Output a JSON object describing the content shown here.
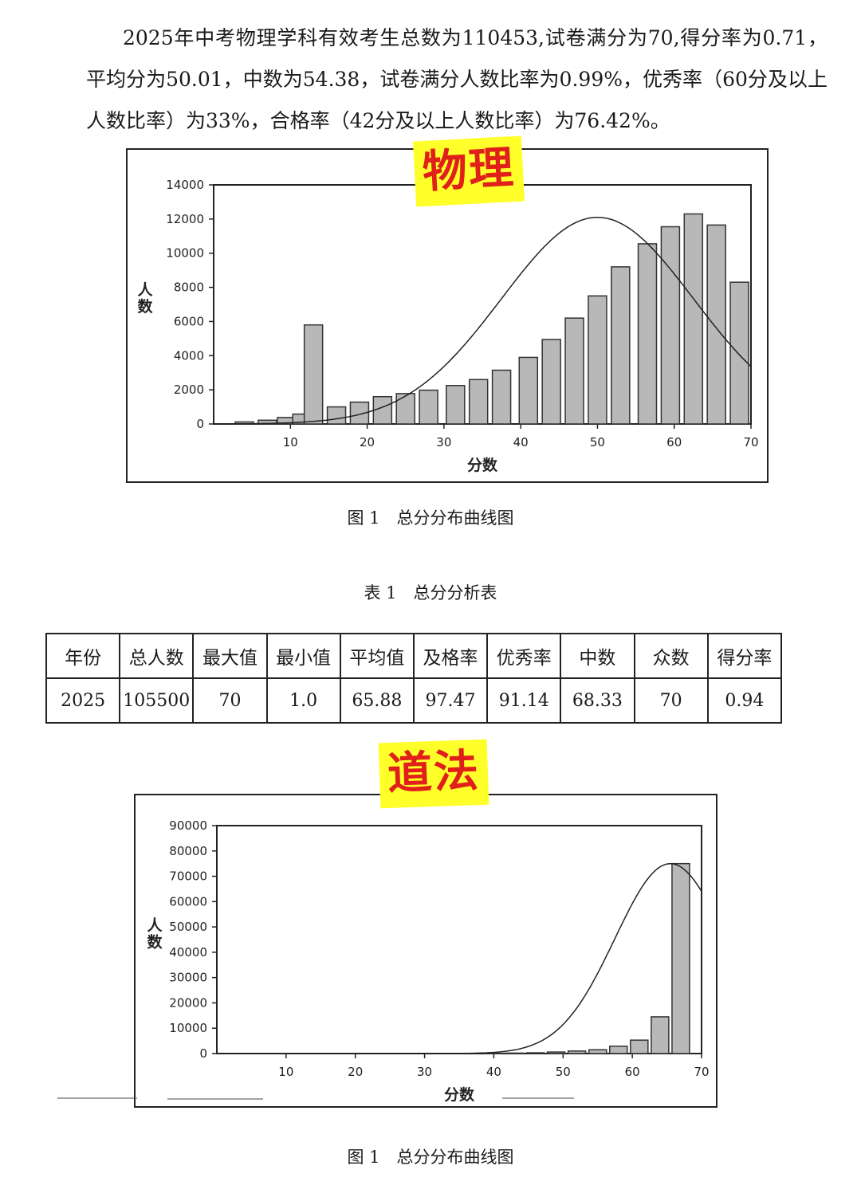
{
  "intro": {
    "text": "2025年中考物理学科有效考生总数为110453,试卷满分为70,得分率为0.71，平均分为50.01，中数为54.38，试卷满分人数比率为0.99%，优秀率（60分及以上人数比率）为33%，合格率（42分及以上人数比率）为76.42%。"
  },
  "physics": {
    "tag": "物理",
    "caption": "图 1　总分分布曲线图"
  },
  "table": {
    "title": "表 1　总分分析表",
    "headers": [
      "年份",
      "总人数",
      "最大值",
      "最小值",
      "平均值",
      "及格率",
      "优秀率",
      "中数",
      "众数",
      "得分率"
    ],
    "row": [
      "2025",
      "105500",
      "70",
      "1.0",
      "65.88",
      "97.47",
      "91.14",
      "68.33",
      "70",
      "0.94"
    ]
  },
  "civics": {
    "tag": "道法",
    "caption": "图 1　总分分布曲线图"
  },
  "chart_data": [
    {
      "type": "bar",
      "subject": "物理",
      "xlabel": "分数",
      "ylabel": "人数",
      "xticks": [
        10,
        20,
        30,
        40,
        50,
        60,
        70
      ],
      "yticks": [
        0,
        2000,
        4000,
        6000,
        8000,
        10000,
        12000,
        14000
      ],
      "xlim": [
        0,
        70
      ],
      "ylim": [
        0,
        14000
      ],
      "bars": [
        {
          "x": 4,
          "y": 120
        },
        {
          "x": 7,
          "y": 220
        },
        {
          "x": 9.5,
          "y": 380
        },
        {
          "x": 11.5,
          "y": 580
        },
        {
          "x": 13,
          "y": 5800
        },
        {
          "x": 16,
          "y": 1000
        },
        {
          "x": 19,
          "y": 1280
        },
        {
          "x": 22,
          "y": 1600
        },
        {
          "x": 25,
          "y": 1780
        },
        {
          "x": 28,
          "y": 1980
        },
        {
          "x": 31.5,
          "y": 2250
        },
        {
          "x": 34.5,
          "y": 2600
        },
        {
          "x": 37.5,
          "y": 3150
        },
        {
          "x": 41,
          "y": 3900
        },
        {
          "x": 44,
          "y": 4950
        },
        {
          "x": 47,
          "y": 6200
        },
        {
          "x": 50,
          "y": 7500
        },
        {
          "x": 53,
          "y": 9200
        },
        {
          "x": 56.5,
          "y": 10550
        },
        {
          "x": 59.5,
          "y": 11550
        },
        {
          "x": 62.5,
          "y": 12300
        },
        {
          "x": 65.5,
          "y": 11650
        },
        {
          "x": 68.5,
          "y": 8300
        }
      ],
      "curve": {
        "peak_x": 50,
        "peak_y": 12100,
        "sigma": 12.5
      }
    },
    {
      "type": "bar",
      "subject": "道法",
      "xlabel": "分数",
      "ylabel": "人数",
      "xticks": [
        10,
        20,
        30,
        40,
        50,
        60,
        70
      ],
      "yticks": [
        0,
        10000,
        20000,
        30000,
        40000,
        50000,
        60000,
        70000,
        80000,
        90000
      ],
      "xlim": [
        0,
        70
      ],
      "ylim": [
        0,
        90000
      ],
      "bars": [
        {
          "x": 40,
          "y": 100
        },
        {
          "x": 43,
          "y": 180
        },
        {
          "x": 46,
          "y": 300
        },
        {
          "x": 49,
          "y": 600
        },
        {
          "x": 52,
          "y": 1000
        },
        {
          "x": 55,
          "y": 1500
        },
        {
          "x": 58,
          "y": 2900
        },
        {
          "x": 61,
          "y": 5300
        },
        {
          "x": 64,
          "y": 14500
        },
        {
          "x": 67,
          "y": 75000
        }
      ],
      "curve": {
        "peak_x": 65.5,
        "peak_y": 75000,
        "sigma": 8
      }
    }
  ]
}
